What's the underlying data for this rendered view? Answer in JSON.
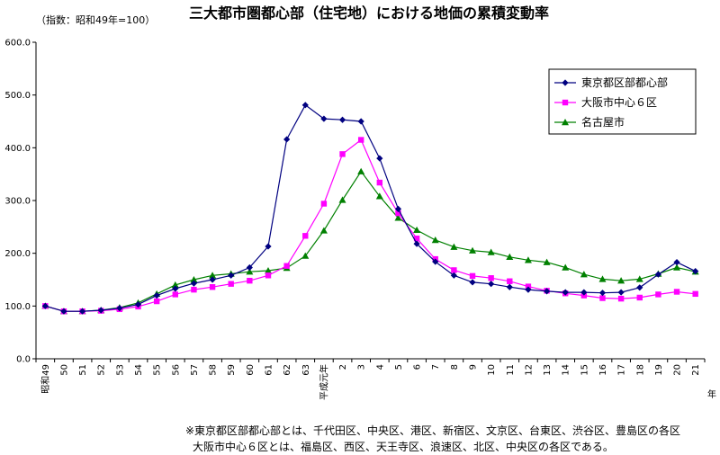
{
  "chart_data": {
    "type": "line",
    "title": "三大都市圏都心部（住宅地）における地価の累積変動率",
    "subtitle": "（指数：昭和49年=100）",
    "x_unit": "年",
    "categories": [
      "昭和49",
      "50",
      "51",
      "52",
      "53",
      "54",
      "55",
      "56",
      "57",
      "58",
      "59",
      "60",
      "61",
      "62",
      "63",
      "平成元年",
      "2",
      "3",
      "4",
      "5",
      "6",
      "7",
      "8",
      "9",
      "10",
      "11",
      "12",
      "13",
      "14",
      "15",
      "16",
      "17",
      "18",
      "19",
      "20",
      "21"
    ],
    "ylim": [
      0,
      600
    ],
    "yticks": [
      "0.0",
      "100.0",
      "200.0",
      "300.0",
      "400.0",
      "500.0",
      "600.0"
    ],
    "grid": false,
    "legend_position": "top-right",
    "series": [
      {
        "name": "東京都区部都心部",
        "color": "#000080",
        "marker": "diamond",
        "values": [
          100,
          90,
          90,
          92,
          96,
          103,
          120,
          133,
          143,
          150,
          158,
          173,
          213,
          416,
          481,
          455,
          453,
          450,
          380,
          284,
          218,
          184,
          158,
          145,
          142,
          136,
          131,
          128,
          126,
          126,
          125,
          126,
          135,
          160,
          183,
          166
        ]
      },
      {
        "name": "大阪市中心６区",
        "color": "#ff00ff",
        "marker": "square",
        "values": [
          100,
          90,
          90,
          91,
          94,
          99,
          109,
          122,
          131,
          136,
          142,
          148,
          158,
          176,
          233,
          294,
          388,
          415,
          334,
          276,
          228,
          189,
          168,
          157,
          153,
          147,
          137,
          129,
          124,
          120,
          115,
          114,
          116,
          122,
          127,
          123
        ]
      },
      {
        "name": "名古屋市",
        "color": "#008000",
        "marker": "triangle",
        "values": [
          100,
          90,
          90,
          92,
          97,
          106,
          123,
          140,
          150,
          158,
          161,
          165,
          167,
          172,
          195,
          243,
          301,
          355,
          308,
          267,
          244,
          225,
          212,
          205,
          202,
          193,
          187,
          183,
          173,
          160,
          151,
          148,
          151,
          161,
          173,
          165
        ]
      }
    ]
  },
  "notes": [
    "※東京都区部都心部とは、千代田区、中央区、港区、新宿区、文京区、台東区、渋谷区、豊島区の各区",
    "大阪市中心６区とは、福島区、西区、天王寺区、浪速区、北区、中央区の各区である。"
  ]
}
